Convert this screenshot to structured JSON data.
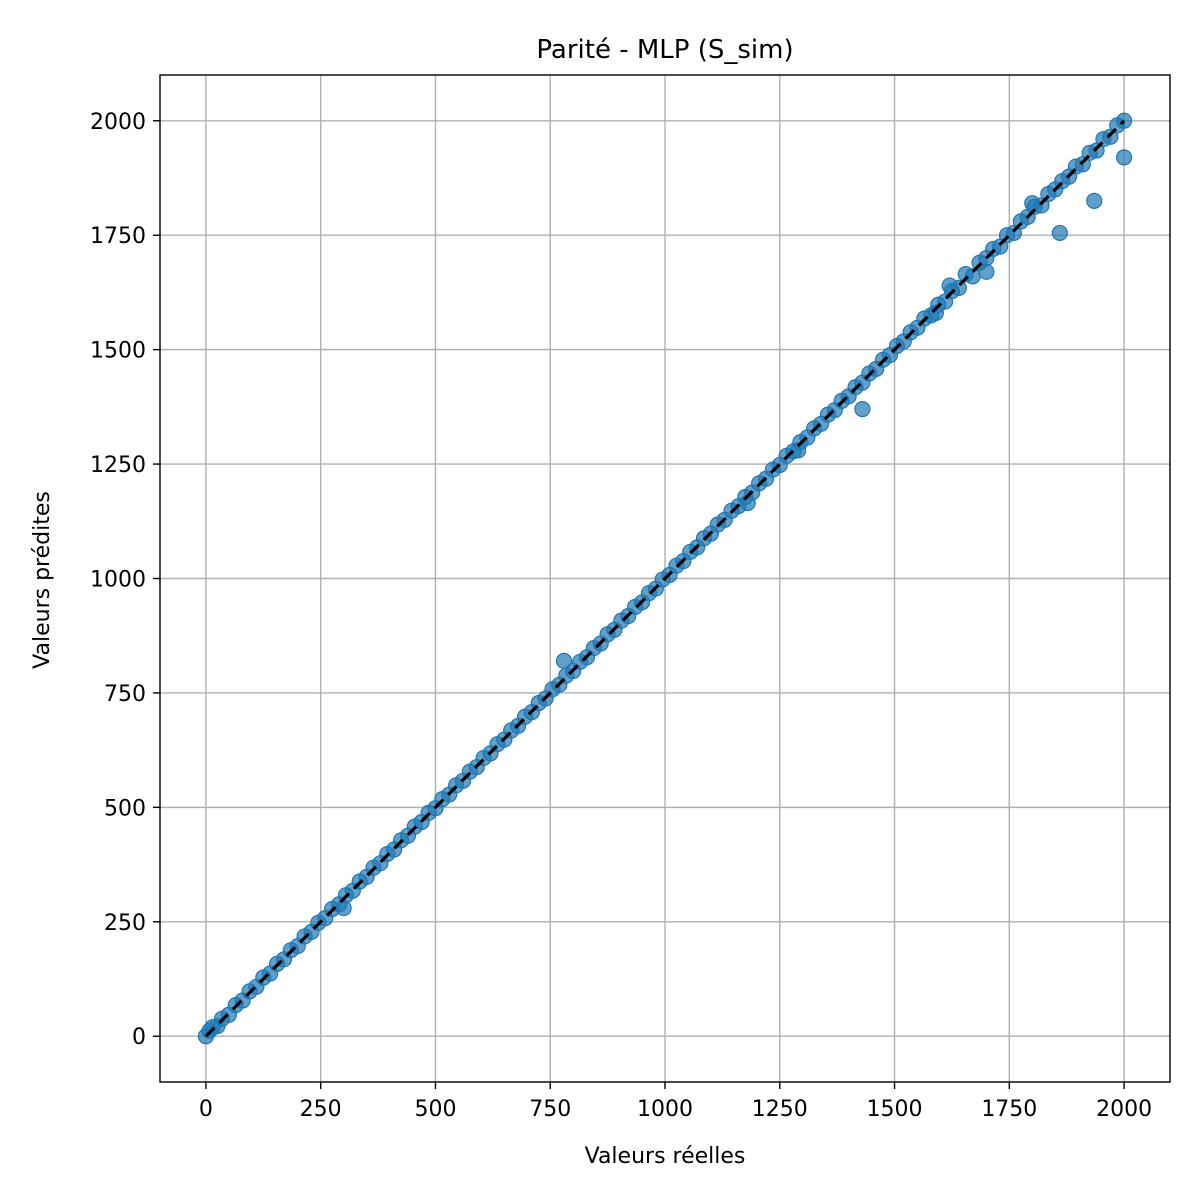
{
  "chart_data": {
    "type": "scatter",
    "title": "Parité - MLP (S_sim)",
    "xlabel": "Valeurs réelles",
    "ylabel": "Valeurs prédites",
    "xlim": [
      -100,
      2100
    ],
    "ylim": [
      -100,
      2100
    ],
    "xticks": [
      0,
      250,
      500,
      750,
      1000,
      1250,
      1500,
      1750,
      2000
    ],
    "yticks": [
      0,
      250,
      500,
      750,
      1000,
      1250,
      1500,
      1750,
      2000
    ],
    "xtick_labels": [
      "0",
      "250",
      "500",
      "750",
      "1000",
      "1250",
      "1500",
      "1750",
      "2000"
    ],
    "ytick_labels": [
      "0",
      "250",
      "500",
      "750",
      "1000",
      "1250",
      "1500",
      "1750",
      "2000"
    ],
    "grid": true,
    "legend": "none",
    "colors": {
      "points": "#1f77b4",
      "reference_line": "#000000",
      "grid": "#b0b0b0"
    },
    "reference_line": {
      "style": "dashed",
      "x": [
        0,
        2000
      ],
      "y": [
        0,
        2000
      ]
    },
    "series": [
      {
        "x": [
          0,
          8,
          15,
          25,
          35,
          50,
          65,
          80,
          95,
          110,
          125,
          140,
          155,
          170,
          185,
          200,
          215,
          230,
          245,
          260,
          275,
          290,
          305,
          320,
          335,
          350,
          365,
          380,
          395,
          410,
          425,
          440,
          455,
          470,
          485,
          500,
          515,
          530,
          545,
          560,
          575,
          590,
          605,
          620,
          635,
          650,
          665,
          680,
          695,
          710,
          725,
          740,
          755,
          770,
          785,
          800,
          815,
          830,
          845,
          860,
          875,
          890,
          905,
          920,
          935,
          950,
          965,
          980,
          995,
          1010,
          1025,
          1040,
          1055,
          1070,
          1085,
          1100,
          1115,
          1130,
          1145,
          1160,
          1175,
          1190,
          1205,
          1220,
          1235,
          1250,
          1265,
          1280,
          1295,
          1310,
          1325,
          1340,
          1355,
          1370,
          1385,
          1400,
          1415,
          1430,
          1445,
          1460,
          1475,
          1490,
          1505,
          1520,
          1535,
          1550,
          1565,
          1580,
          1595,
          1610,
          1625,
          1640,
          1655,
          1670,
          1685,
          1700,
          1715,
          1730,
          1745,
          1760,
          1775,
          1790,
          1805,
          1820,
          1835,
          1850,
          1865,
          1880,
          1895,
          1910,
          1925,
          1940,
          1955,
          1970,
          1985,
          2000,
          1430,
          1860,
          1935,
          2000,
          1700,
          1590,
          1290,
          1180,
          780,
          300,
          1620,
          1800
        ],
        "y": [
          0,
          12,
          20,
          22,
          38,
          47,
          68,
          78,
          98,
          108,
          128,
          137,
          158,
          168,
          188,
          197,
          218,
          228,
          248,
          258,
          278,
          288,
          308,
          318,
          338,
          348,
          368,
          378,
          398,
          408,
          428,
          438,
          458,
          468,
          488,
          498,
          518,
          528,
          548,
          558,
          578,
          588,
          608,
          618,
          638,
          648,
          668,
          678,
          698,
          708,
          728,
          738,
          758,
          768,
          788,
          798,
          818,
          828,
          848,
          858,
          878,
          888,
          908,
          918,
          938,
          948,
          968,
          978,
          998,
          1008,
          1028,
          1038,
          1058,
          1068,
          1088,
          1098,
          1118,
          1128,
          1148,
          1158,
          1178,
          1188,
          1208,
          1218,
          1238,
          1248,
          1268,
          1278,
          1298,
          1308,
          1328,
          1338,
          1358,
          1368,
          1388,
          1398,
          1418,
          1428,
          1448,
          1458,
          1478,
          1488,
          1508,
          1518,
          1538,
          1548,
          1568,
          1575,
          1598,
          1605,
          1628,
          1635,
          1665,
          1660,
          1690,
          1700,
          1720,
          1725,
          1750,
          1755,
          1780,
          1790,
          1812,
          1815,
          1840,
          1850,
          1868,
          1878,
          1900,
          1905,
          1930,
          1935,
          1960,
          1965,
          1990,
          2000,
          1370,
          1755,
          1825,
          1920,
          1670,
          1580,
          1280,
          1165,
          820,
          280,
          1640,
          1820
        ]
      }
    ]
  }
}
